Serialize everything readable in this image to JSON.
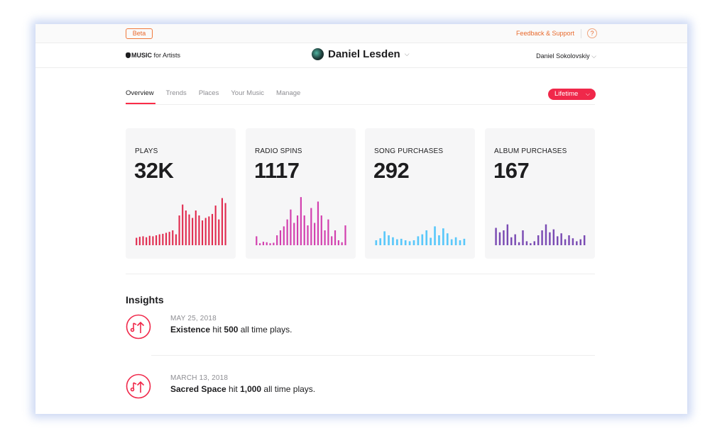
{
  "topbar": {
    "beta_label": "Beta",
    "feedback_label": "Feedback & Support",
    "help_label": "?"
  },
  "header": {
    "brand_strong": "MUSIC",
    "brand_rest": " for Artists",
    "artist_name": "Daniel Lesden",
    "user_name": "Daniel Sokolovskiy",
    "chevron": "⌵"
  },
  "tabs": [
    {
      "label": "Overview",
      "active": true
    },
    {
      "label": "Trends",
      "active": false
    },
    {
      "label": "Places",
      "active": false
    },
    {
      "label": "Your Music",
      "active": false
    },
    {
      "label": "Manage",
      "active": false
    }
  ],
  "range_selector": {
    "label": "Lifetime",
    "chevron": "⌵"
  },
  "stats": [
    {
      "label": "PLAYS",
      "value": "32K",
      "color": "#e0294d",
      "bars": [
        0.15,
        0.17,
        0.18,
        0.16,
        0.19,
        0.18,
        0.2,
        0.22,
        0.23,
        0.25,
        0.27,
        0.3,
        0.22,
        0.6,
        0.82,
        0.7,
        0.62,
        0.55,
        0.7,
        0.6,
        0.5,
        0.55,
        0.58,
        0.63,
        0.8,
        0.52,
        0.95,
        0.85
      ]
    },
    {
      "label": "RADIO SPINS",
      "value": "1117",
      "color": "#d23fae",
      "bars": [
        0.18,
        0.04,
        0.07,
        0.06,
        0.04,
        0.05,
        0.2,
        0.3,
        0.38,
        0.52,
        0.72,
        0.45,
        0.6,
        0.97,
        0.6,
        0.4,
        0.75,
        0.45,
        0.88,
        0.6,
        0.3,
        0.52,
        0.18,
        0.3,
        0.1,
        0.06,
        0.4
      ]
    },
    {
      "label": "SONG PURCHASES",
      "value": "292",
      "color": "#5ac8fa",
      "bars": [
        0.1,
        0.14,
        0.28,
        0.2,
        0.16,
        0.12,
        0.13,
        0.1,
        0.08,
        0.1,
        0.18,
        0.22,
        0.3,
        0.15,
        0.38,
        0.2,
        0.34,
        0.24,
        0.12,
        0.16,
        0.1,
        0.13
      ]
    },
    {
      "label": "ALBUM PURCHASES",
      "value": "167",
      "color": "#7a4bb3",
      "bars": [
        0.35,
        0.26,
        0.3,
        0.42,
        0.16,
        0.22,
        0.06,
        0.3,
        0.08,
        0.04,
        0.08,
        0.2,
        0.3,
        0.42,
        0.26,
        0.32,
        0.18,
        0.24,
        0.12,
        0.2,
        0.14,
        0.08,
        0.12,
        0.2
      ]
    }
  ],
  "insights": {
    "title": "Insights",
    "items": [
      {
        "date": "MAY 25, 2018",
        "subject": "Existence",
        "mid": " hit ",
        "amount": "500",
        "tail": " all time plays."
      },
      {
        "date": "MARCH 13, 2018",
        "subject": "Sacred Space",
        "mid": " hit ",
        "amount": "1,000",
        "tail": " all time plays."
      }
    ]
  },
  "colors": {
    "accent": "#f0284a",
    "beta": "#e8692c"
  }
}
